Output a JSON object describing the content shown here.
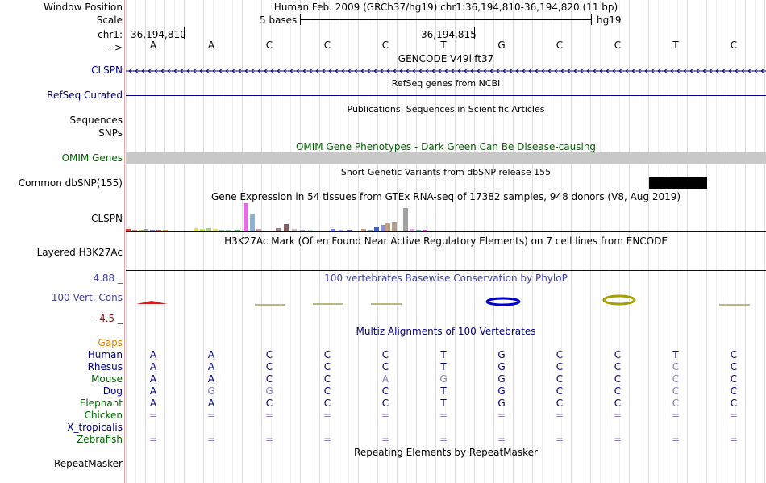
{
  "labels": {
    "window_position": "Window Position",
    "scale": "Scale",
    "chrom": "chr1:",
    "strand": "--->",
    "clspn_gene": "CLSPN",
    "refseq": "RefSeq Curated",
    "sequences": "Sequences",
    "snps": "SNPs",
    "omim": "OMIM Genes",
    "dbsnp": "Common dbSNP(155)",
    "gtex": "CLSPN",
    "h3k27ac": "Layered H3K27Ac",
    "cons_max": "4.88 _",
    "cons": "100 Vert. Cons",
    "cons_min": "-4.5 _",
    "gaps": "Gaps",
    "species": [
      {
        "name": "Human",
        "color": "#000080"
      },
      {
        "name": "Rhesus",
        "color": "#000080"
      },
      {
        "name": "Mouse",
        "color": "#006400"
      },
      {
        "name": "Dog",
        "color": "#000080"
      },
      {
        "name": "Elephant",
        "color": "#006400"
      },
      {
        "name": "Chicken",
        "color": "#006400"
      },
      {
        "name": "X_tropicalis",
        "color": "#000080"
      },
      {
        "name": "Zebrafish",
        "color": "#006400"
      }
    ],
    "repeatmasker": "RepeatMasker"
  },
  "header": {
    "position_text": "Human Feb. 2009 (GRCh37/hg19)   chr1:36,194,810-36,194,820 (11 bp)",
    "scale_text": "5 bases",
    "scale_assembly": "hg19",
    "coord_left": "36,194,810",
    "coord_mid": "36,194,815"
  },
  "bases": [
    "A",
    "A",
    "C",
    "C",
    "C",
    "T",
    "G",
    "C",
    "C",
    "T",
    "C"
  ],
  "tracks": {
    "gencode_title": "GENCODE V49lift37",
    "refseq_title": "RefSeq genes from NCBI",
    "publications_title": "Publications: Sequences in Scientific Articles",
    "omim_title": "OMIM Gene Phenotypes - Dark Green Can Be Disease-causing",
    "dbsnp_title": "Short Genetic Variants from dbSNP release 155",
    "gtex_title": "Gene Expression in 54 tissues from GTEx RNA-seq of 17382 samples, 948 donors (V8, Aug 2019)",
    "h3k27ac_title": "H3K27Ac Mark (Often Found Near Active Regulatory Elements) on 7 cell lines from ENCODE",
    "cons_title": "100 vertebrates Basewise Conservation by PhyloP",
    "multiz_title": "Multiz Alignments of 100 Vertebrates",
    "repeat_title": "Repeating Elements by RepeatMasker"
  },
  "alignments": [
    [
      "A",
      "A",
      "C",
      "C",
      "C",
      "T",
      "G",
      "C",
      "C",
      "T",
      "C"
    ],
    [
      "A",
      "A",
      "C",
      "C",
      "C",
      "T",
      "G",
      "C",
      "C",
      "C",
      "C"
    ],
    [
      "A",
      "A",
      "C",
      "C",
      "A",
      "G",
      "G",
      "C",
      "C",
      "C",
      "C"
    ],
    [
      "A",
      "G",
      "G",
      "C",
      "C",
      "T",
      "G",
      "C",
      "C",
      "C",
      "C"
    ],
    [
      "A",
      "A",
      "C",
      "C",
      "C",
      "T",
      "G",
      "C",
      "C",
      "C",
      "C"
    ],
    [
      "=",
      "=",
      "=",
      "=",
      "=",
      "=",
      "=",
      "=",
      "=",
      "=",
      "="
    ],
    [
      "",
      "",
      "",
      "",
      "",
      "",
      "",
      "",
      "",
      "",
      ""
    ],
    [
      "=",
      "=",
      "=",
      "=",
      "=",
      "=",
      "=",
      "=",
      "=",
      "=",
      "="
    ]
  ],
  "alignment_dim": [
    [
      0,
      0,
      0,
      0,
      0,
      0,
      0,
      0,
      0,
      0,
      0
    ],
    [
      0,
      0,
      0,
      0,
      0,
      0,
      0,
      0,
      0,
      1,
      0
    ],
    [
      0,
      0,
      0,
      0,
      1,
      1,
      0,
      0,
      0,
      1,
      0
    ],
    [
      0,
      1,
      1,
      0,
      0,
      0,
      0,
      0,
      0,
      1,
      0
    ],
    [
      0,
      0,
      0,
      0,
      0,
      0,
      0,
      0,
      0,
      1,
      0
    ],
    [
      1,
      1,
      1,
      1,
      1,
      1,
      1,
      1,
      1,
      1,
      1
    ],
    [
      0,
      0,
      0,
      0,
      0,
      0,
      0,
      0,
      0,
      0,
      0
    ],
    [
      1,
      1,
      1,
      1,
      1,
      1,
      1,
      1,
      1,
      1,
      1
    ]
  ],
  "colors": {
    "navy": "#000080",
    "omim_green": "#006400",
    "omim_bar": "#c8c8c8",
    "dbsnp_var": "#000000",
    "gaps_orange": "#e08000",
    "cons_purple": "#4040a0",
    "cons_min": "#8b2020",
    "dim_base": "#8080c0"
  }
}
